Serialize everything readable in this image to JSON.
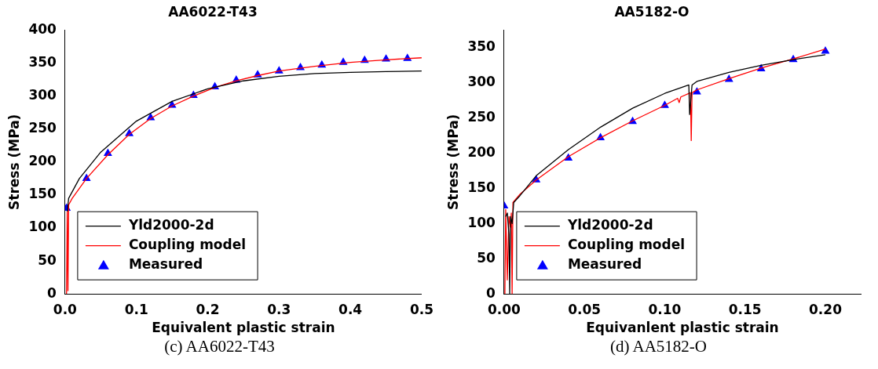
{
  "chart_data": [
    {
      "type": "line",
      "title": "AA6022-T43",
      "xlabel": "Equivalent plastic strain",
      "ylabel": "Stress (MPa)",
      "annotations": [
        "(c) AA6022-T43"
      ],
      "legend": "bottom left",
      "grid": false,
      "line_style": "solid",
      "xlim": [
        0,
        0.5
      ],
      "xticks": [
        {
          "value": 0,
          "label": "0.0"
        },
        {
          "value": 0.1,
          "label": "0.1"
        },
        {
          "value": 0.2,
          "label": "0.2"
        },
        {
          "value": 0.3,
          "label": "0.3"
        },
        {
          "value": 0.4,
          "label": "0.4"
        },
        {
          "value": 0.5,
          "label": "0.5"
        }
      ],
      "ylim": [
        0,
        400
      ],
      "yticks": [
        0,
        50,
        100,
        150,
        200,
        250,
        300,
        350,
        400
      ],
      "series": [
        {
          "name": "Yld2000-2d",
          "type": "line",
          "marker": "none",
          "color": "#000000",
          "x": [
            0.003,
            0.005,
            0.02,
            0.05,
            0.1,
            0.15,
            0.2,
            0.25,
            0.3,
            0.35,
            0.4,
            0.45,
            0.5
          ],
          "values": [
            125,
            145,
            175,
            215,
            262,
            292,
            311,
            323,
            330,
            334,
            336,
            337,
            338
          ]
        },
        {
          "name": "Coupling model",
          "type": "line",
          "marker": "none",
          "color": "#ff0000",
          "x": [
            0.002,
            0.003,
            0.004,
            0.005,
            0.01,
            0.03,
            0.06,
            0.09,
            0.12,
            0.15,
            0.18,
            0.21,
            0.24,
            0.27,
            0.3,
            0.35,
            0.4,
            0.45,
            0.5
          ],
          "values": [
            0,
            125,
            5,
            135,
            145,
            175,
            211,
            242,
            266,
            285,
            300,
            313,
            323,
            331,
            338,
            345,
            351,
            355,
            358
          ]
        },
        {
          "name": "Measured",
          "type": "scatter",
          "marker": "triangle",
          "color": "#0000ff",
          "x": [
            0.002,
            0.03,
            0.06,
            0.09,
            0.12,
            0.15,
            0.18,
            0.21,
            0.24,
            0.27,
            0.3,
            0.33,
            0.36,
            0.39,
            0.42,
            0.45,
            0.48
          ],
          "values": [
            130,
            175,
            213,
            243,
            267,
            286,
            301,
            314,
            324,
            332,
            338,
            343,
            347,
            351,
            354,
            356,
            357
          ]
        }
      ]
    },
    {
      "type": "line",
      "title": "AA5182-O",
      "xlabel": "Equivanlent plastic strain",
      "ylabel": "Stress (MPa)",
      "annotations": [
        "(d) AA5182-O"
      ],
      "legend": "bottom left",
      "grid": false,
      "line_style": "solid",
      "xlim": [
        0,
        0.222
      ],
      "xticks": [
        {
          "value": 0,
          "label": "0.00"
        },
        {
          "value": 0.05,
          "label": "0.05"
        },
        {
          "value": 0.1,
          "label": "0.10"
        },
        {
          "value": 0.15,
          "label": "0.15"
        },
        {
          "value": 0.2,
          "label": "0.20"
        }
      ],
      "ylim": [
        0,
        375
      ],
      "yticks": [
        0,
        50,
        100,
        150,
        200,
        250,
        300,
        350
      ],
      "series": [
        {
          "name": "Yld2000-2d",
          "type": "line",
          "marker": "none",
          "color": "#000000",
          "x": [
            0.001,
            0.002,
            0.003,
            0.0035,
            0.004,
            0.005,
            0.006,
            0.01,
            0.02,
            0.04,
            0.06,
            0.08,
            0.1,
            0.115,
            0.1155,
            0.117,
            0.12,
            0.14,
            0.16,
            0.18,
            0.2
          ],
          "values": [
            110,
            115,
            85,
            0,
            110,
            100,
            130,
            140,
            168,
            205,
            237,
            264,
            285,
            297,
            255,
            297,
            302,
            315,
            325,
            333,
            340
          ]
        },
        {
          "name": "Coupling model",
          "type": "line",
          "marker": "none",
          "color": "#ff0000",
          "x": [
            0.0005,
            0.001,
            0.002,
            0.003,
            0.004,
            0.0045,
            0.005,
            0.0055,
            0.01,
            0.02,
            0.04,
            0.06,
            0.08,
            0.1,
            0.108,
            0.109,
            0.11,
            0.116,
            0.1165,
            0.117,
            0.12,
            0.14,
            0.16,
            0.18,
            0.2
          ],
          "values": [
            0,
            120,
            20,
            110,
            95,
            115,
            0,
            130,
            142,
            162,
            195,
            222,
            246,
            268,
            278,
            272,
            280,
            286,
            218,
            286,
            290,
            306,
            321,
            334,
            348
          ]
        },
        {
          "name": "Measured",
          "type": "scatter",
          "marker": "triangle",
          "color": "#0000ff",
          "x": [
            0,
            0.02,
            0.04,
            0.06,
            0.08,
            0.1,
            0.12,
            0.14,
            0.16,
            0.18,
            0.2
          ],
          "values": [
            125,
            162,
            193,
            222,
            245,
            268,
            287,
            305,
            320,
            333,
            345
          ]
        }
      ]
    }
  ]
}
